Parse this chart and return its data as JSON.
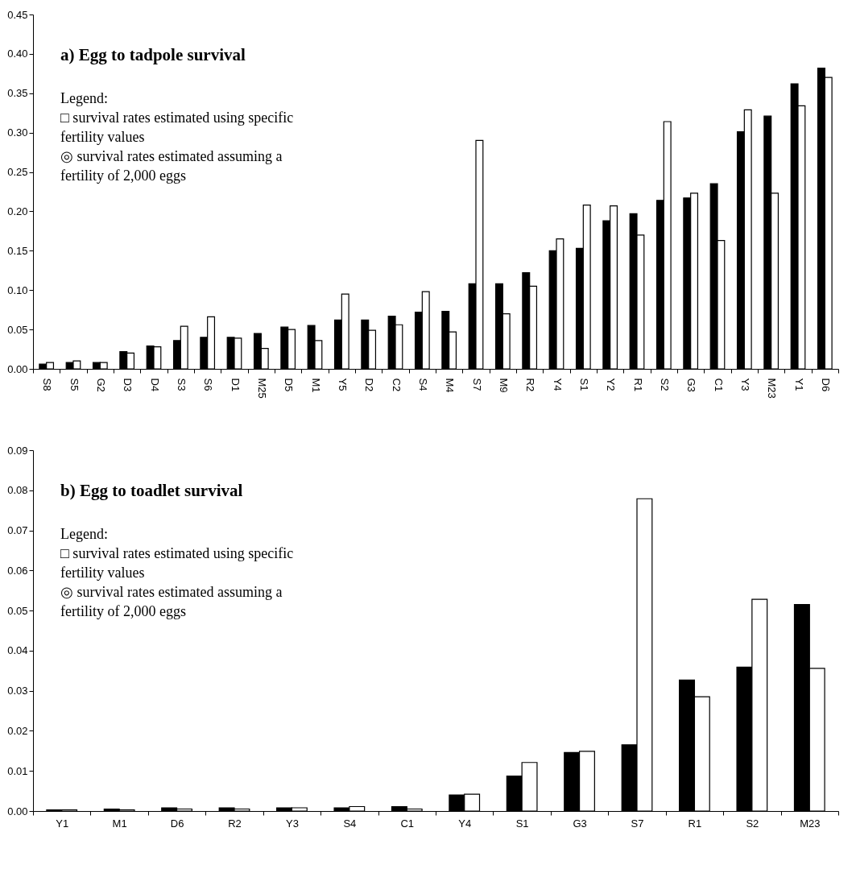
{
  "chart_data": [
    {
      "type": "bar",
      "title": "a) Egg to tadpole survival",
      "categories": [
        "S8",
        "S5",
        "G2",
        "D3",
        "D4",
        "S3",
        "S6",
        "D1",
        "M25",
        "D5",
        "M1",
        "Y5",
        "D2",
        "C2",
        "S4",
        "M4",
        "S7",
        "M9",
        "R2",
        "Y4",
        "S1",
        "Y2",
        "R1",
        "S2",
        "G3",
        "C1",
        "Y3",
        "M23",
        "Y1",
        "D6"
      ],
      "series": [
        {
          "color": "#000000",
          "values": [
            0.006,
            0.008,
            0.008,
            0.022,
            0.029,
            0.036,
            0.04,
            0.04,
            0.045,
            0.053,
            0.055,
            0.062,
            0.062,
            0.067,
            0.072,
            0.073,
            0.108,
            0.108,
            0.122,
            0.15,
            0.153,
            0.188,
            0.197,
            0.214,
            0.217,
            0.235,
            0.301,
            0.321,
            0.362,
            0.382
          ]
        },
        {
          "color": "#ffffff",
          "values": [
            0.008,
            0.01,
            0.008,
            0.02,
            0.028,
            0.054,
            0.066,
            0.039,
            0.026,
            0.05,
            0.036,
            0.095,
            0.049,
            0.056,
            0.098,
            0.047,
            0.29,
            0.07,
            0.105,
            0.165,
            0.208,
            0.207,
            0.17,
            0.314,
            0.223,
            0.163,
            0.329,
            0.223,
            0.334,
            0.37
          ]
        }
      ],
      "ylim": [
        0,
        0.45
      ],
      "yticks": [
        {
          "value": 0,
          "label": "0.00"
        },
        {
          "value": 0.05,
          "label": "0.05"
        },
        {
          "value": 0.1,
          "label": "0.10"
        },
        {
          "value": 0.15,
          "label": "0.15"
        },
        {
          "value": 0.2,
          "label": "0.20"
        },
        {
          "value": 0.25,
          "label": "0.25"
        },
        {
          "value": 0.3,
          "label": "0.30"
        },
        {
          "value": 0.35,
          "label": "0.35"
        },
        {
          "value": 0.4,
          "label": "0.40"
        },
        {
          "value": 0.45,
          "label": "0.45"
        }
      ],
      "annotations": [
        "Legend:",
        "□ survival rates estimated using specific\nfertility values",
        "◎ survival rates estimated assuming a\nfertility of 2,000 eggs"
      ],
      "grid": false
    },
    {
      "type": "bar",
      "title": "b) Egg to toadlet survival",
      "categories": [
        "Y1",
        "M1",
        "D6",
        "R2",
        "Y3",
        "S4",
        "C1",
        "Y4",
        "S1",
        "G3",
        "S7",
        "R1",
        "S2",
        "M23"
      ],
      "series": [
        {
          "color": "#000000",
          "values": [
            0.0003,
            0.0005,
            0.0008,
            0.0008,
            0.0008,
            0.0008,
            0.0011,
            0.004,
            0.0087,
            0.0146,
            0.0165,
            0.0327,
            0.0359,
            0.0515
          ]
        },
        {
          "color": "#ffffff",
          "values": [
            0.0003,
            0.0003,
            0.0005,
            0.0005,
            0.0008,
            0.0011,
            0.0005,
            0.0042,
            0.0121,
            0.0149,
            0.0779,
            0.0285,
            0.0528,
            0.0356
          ]
        }
      ],
      "ylim": [
        0,
        0.09
      ],
      "yticks": [
        {
          "value": 0,
          "label": "0.00"
        },
        {
          "value": 0.01,
          "label": "0.01"
        },
        {
          "value": 0.02,
          "label": "0.02"
        },
        {
          "value": 0.03,
          "label": "0.03"
        },
        {
          "value": 0.04,
          "label": "0.04"
        },
        {
          "value": 0.05,
          "label": "0.05"
        },
        {
          "value": 0.06,
          "label": "0.06"
        },
        {
          "value": 0.07,
          "label": "0.07"
        },
        {
          "value": 0.08,
          "label": "0.08"
        },
        {
          "value": 0.09,
          "label": "0.09"
        }
      ],
      "annotations": [
        "Legend:",
        "□ survival rates estimated using specific\nfertility values",
        "◎ survival rates estimated assuming a\nfertility of 2,000 eggs"
      ],
      "grid": false
    }
  ]
}
